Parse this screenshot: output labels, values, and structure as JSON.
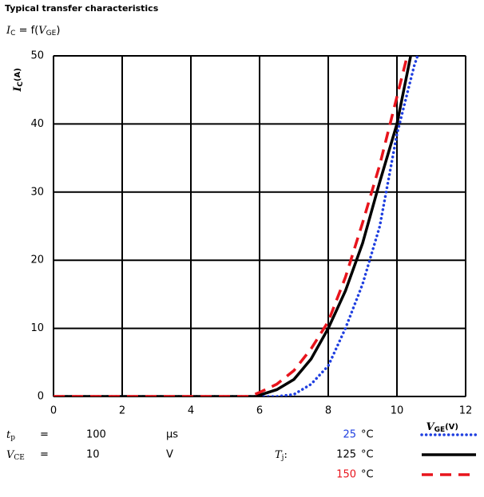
{
  "chart_data": {
    "type": "line",
    "title": "Typical transfer characteristics",
    "subtitle": {
      "lhs": "I",
      "lhs_sub": "C",
      "eq": " = f(",
      "arg": "V",
      "arg_sub": "GE",
      "close": ")"
    },
    "xlabel": {
      "symbol": "V",
      "sub": "GE",
      "unit": "(V)"
    },
    "ylabel": {
      "symbol": "I",
      "sub": "C",
      "unit": "(A)"
    },
    "xlim": [
      0,
      12
    ],
    "xticks": [
      0,
      2,
      4,
      6,
      8,
      10,
      12
    ],
    "ylim": [
      0,
      50
    ],
    "yticks": [
      0,
      10,
      20,
      30,
      40,
      50
    ],
    "grid": true,
    "conditions": [
      {
        "symbol": "t",
        "sub": "p",
        "eq": "=",
        "value": 100,
        "unit": "µs"
      },
      {
        "symbol": "V",
        "sub": "CE",
        "eq": "=",
        "value": 10,
        "unit": "V"
      }
    ],
    "legend_title": {
      "symbol": "T",
      "sub": "j",
      "suffix": ":"
    },
    "legend_unit": "°C",
    "series": [
      {
        "name": "25",
        "color": "#1f3fe0",
        "style": "dotted",
        "x": [
          0,
          6.5,
          7,
          7.5,
          8,
          8.5,
          9,
          9.5,
          10,
          10.5,
          10.6
        ],
        "values": [
          0,
          0,
          0.3,
          1.8,
          4.5,
          10,
          16.5,
          25,
          38.5,
          48.5,
          50
        ]
      },
      {
        "name": "125",
        "color": "#000000",
        "style": "solid",
        "x": [
          0,
          5.9,
          6,
          6.5,
          7,
          7.5,
          8,
          8.5,
          9,
          9.5,
          10,
          10.4
        ],
        "values": [
          0,
          0,
          0.2,
          1,
          2.5,
          5.5,
          10,
          15.5,
          22.5,
          31.5,
          40,
          50
        ]
      },
      {
        "name": "150",
        "color": "#e8141c",
        "style": "dashed",
        "x": [
          0,
          5.7,
          6,
          6.5,
          7,
          7.5,
          8,
          8.5,
          9,
          9.5,
          10,
          10.3
        ],
        "values": [
          0,
          0,
          0.6,
          1.8,
          3.8,
          7,
          11,
          17.5,
          25.5,
          34,
          44,
          50
        ]
      }
    ]
  }
}
